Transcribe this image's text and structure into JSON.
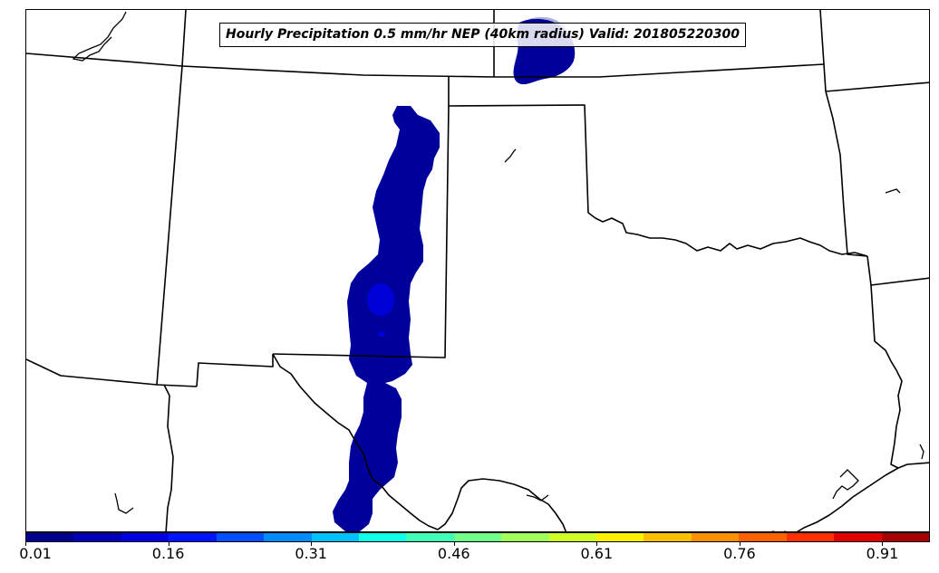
{
  "map": {
    "title": "Hourly Precipitation 0.5 mm/hr NEP (40km radius) Valid: 201805220300",
    "shading_colors": {
      "level_1": "#00009a",
      "level_2": "#0000d8",
      "faint": "#aab0d8"
    },
    "boundary_color": "#000000"
  },
  "colorbar": {
    "colors": [
      "#00008f",
      "#0000b8",
      "#0000e0",
      "#0014ff",
      "#0050ff",
      "#008cff",
      "#00c0ff",
      "#10ffe8",
      "#40ffb8",
      "#70ff88",
      "#a0ff58",
      "#d0ff28",
      "#fff000",
      "#ffc000",
      "#ff9000",
      "#ff6000",
      "#ff3000",
      "#e00000",
      "#a80000"
    ],
    "tick_labels": [
      "0.01",
      "0.16",
      "0.31",
      "0.46",
      "0.61",
      "0.76",
      "0.91"
    ]
  }
}
